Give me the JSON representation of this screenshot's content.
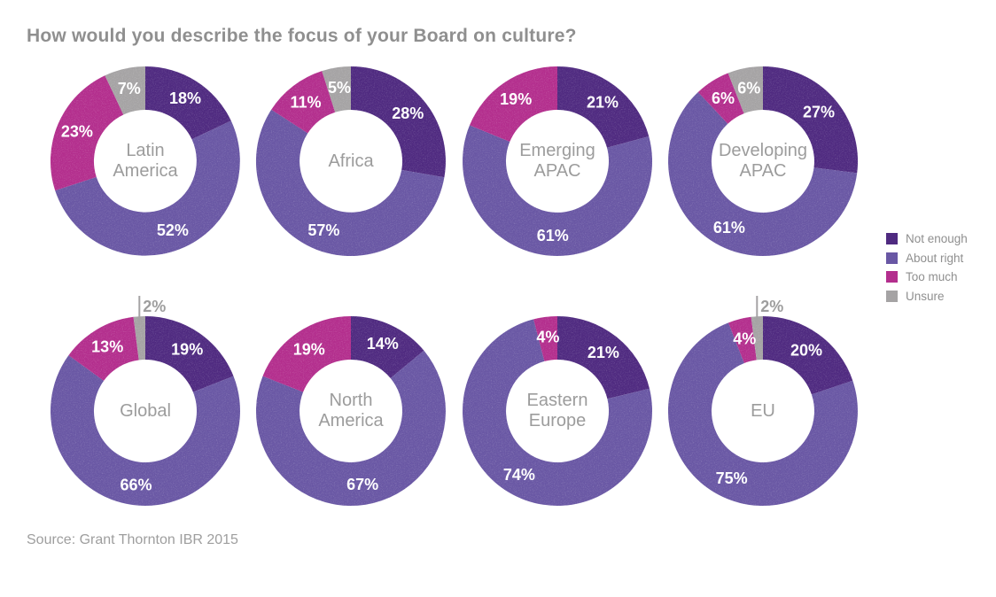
{
  "title": "How would you describe the focus of your Board on culture?",
  "source": "Source: Grant Thornton IBR 2015",
  "legend": {
    "position": "right",
    "items": [
      {
        "label": "Not enough",
        "color": "#4f2a80"
      },
      {
        "label": "About right",
        "color": "#6957a4"
      },
      {
        "label": "Too much",
        "color": "#b32e8d"
      },
      {
        "label": "Unsure",
        "color": "#a5a3a4"
      }
    ]
  },
  "chart_data": [
    {
      "type": "pie",
      "subtype": "donut",
      "id": "latin-america",
      "title": "Latin America",
      "center_lines": [
        "Latin",
        "America"
      ],
      "categories": [
        "Not enough",
        "About right",
        "Too much",
        "Unsure"
      ],
      "values": [
        18,
        52,
        23,
        7
      ],
      "labels": [
        "18%",
        "52%",
        "23%",
        "7%"
      ],
      "callout_index": null
    },
    {
      "type": "pie",
      "subtype": "donut",
      "id": "africa",
      "title": "Africa",
      "center_lines": [
        "Africa"
      ],
      "categories": [
        "Not enough",
        "About right",
        "Too much",
        "Unsure"
      ],
      "values": [
        28,
        57,
        11,
        5
      ],
      "labels": [
        "28%",
        "57%",
        "11%",
        "5%"
      ],
      "callout_index": null
    },
    {
      "type": "pie",
      "subtype": "donut",
      "id": "emerging-apac",
      "title": "Emerging APAC",
      "center_lines": [
        "Emerging",
        "APAC"
      ],
      "categories": [
        "Not enough",
        "About right",
        "Too much",
        "Unsure"
      ],
      "values": [
        21,
        61,
        19,
        0
      ],
      "labels": [
        "21%",
        "61%",
        "19%",
        null
      ],
      "callout_index": null
    },
    {
      "type": "pie",
      "subtype": "donut",
      "id": "developing-apac",
      "title": "Developing APAC",
      "center_lines": [
        "Developing",
        "APAC"
      ],
      "categories": [
        "Not enough",
        "About right",
        "Too much",
        "Unsure"
      ],
      "values": [
        27,
        61,
        6,
        6
      ],
      "labels": [
        "27%",
        "61%",
        "6%",
        "6%"
      ],
      "callout_index": null
    },
    {
      "type": "pie",
      "subtype": "donut",
      "id": "global",
      "title": "Global",
      "center_lines": [
        "Global"
      ],
      "categories": [
        "Not enough",
        "About right",
        "Too much",
        "Unsure"
      ],
      "values": [
        19,
        66,
        13,
        2
      ],
      "labels": [
        "19%",
        "66%",
        "13%",
        "2%"
      ],
      "callout_index": 3
    },
    {
      "type": "pie",
      "subtype": "donut",
      "id": "north-america",
      "title": "North America",
      "center_lines": [
        "North",
        "America"
      ],
      "categories": [
        "Not enough",
        "About right",
        "Too much",
        "Unsure"
      ],
      "values": [
        14,
        67,
        19,
        0
      ],
      "labels": [
        "14%",
        "67%",
        "19%",
        null
      ],
      "callout_index": null
    },
    {
      "type": "pie",
      "subtype": "donut",
      "id": "eastern-europe",
      "title": "Eastern Europe",
      "center_lines": [
        "Eastern",
        "Europe"
      ],
      "categories": [
        "Not enough",
        "About right",
        "Too much",
        "Unsure"
      ],
      "values": [
        21,
        74,
        4,
        0
      ],
      "labels": [
        "21%",
        "74%",
        "4%",
        null
      ],
      "callout_index": null
    },
    {
      "type": "pie",
      "subtype": "donut",
      "id": "eu",
      "title": "EU",
      "center_lines": [
        "EU"
      ],
      "categories": [
        "Not enough",
        "About right",
        "Too much",
        "Unsure"
      ],
      "values": [
        20,
        75,
        4,
        2
      ],
      "labels": [
        "20%",
        "75%",
        "4%",
        "2%"
      ],
      "callout_index": 3
    }
  ]
}
